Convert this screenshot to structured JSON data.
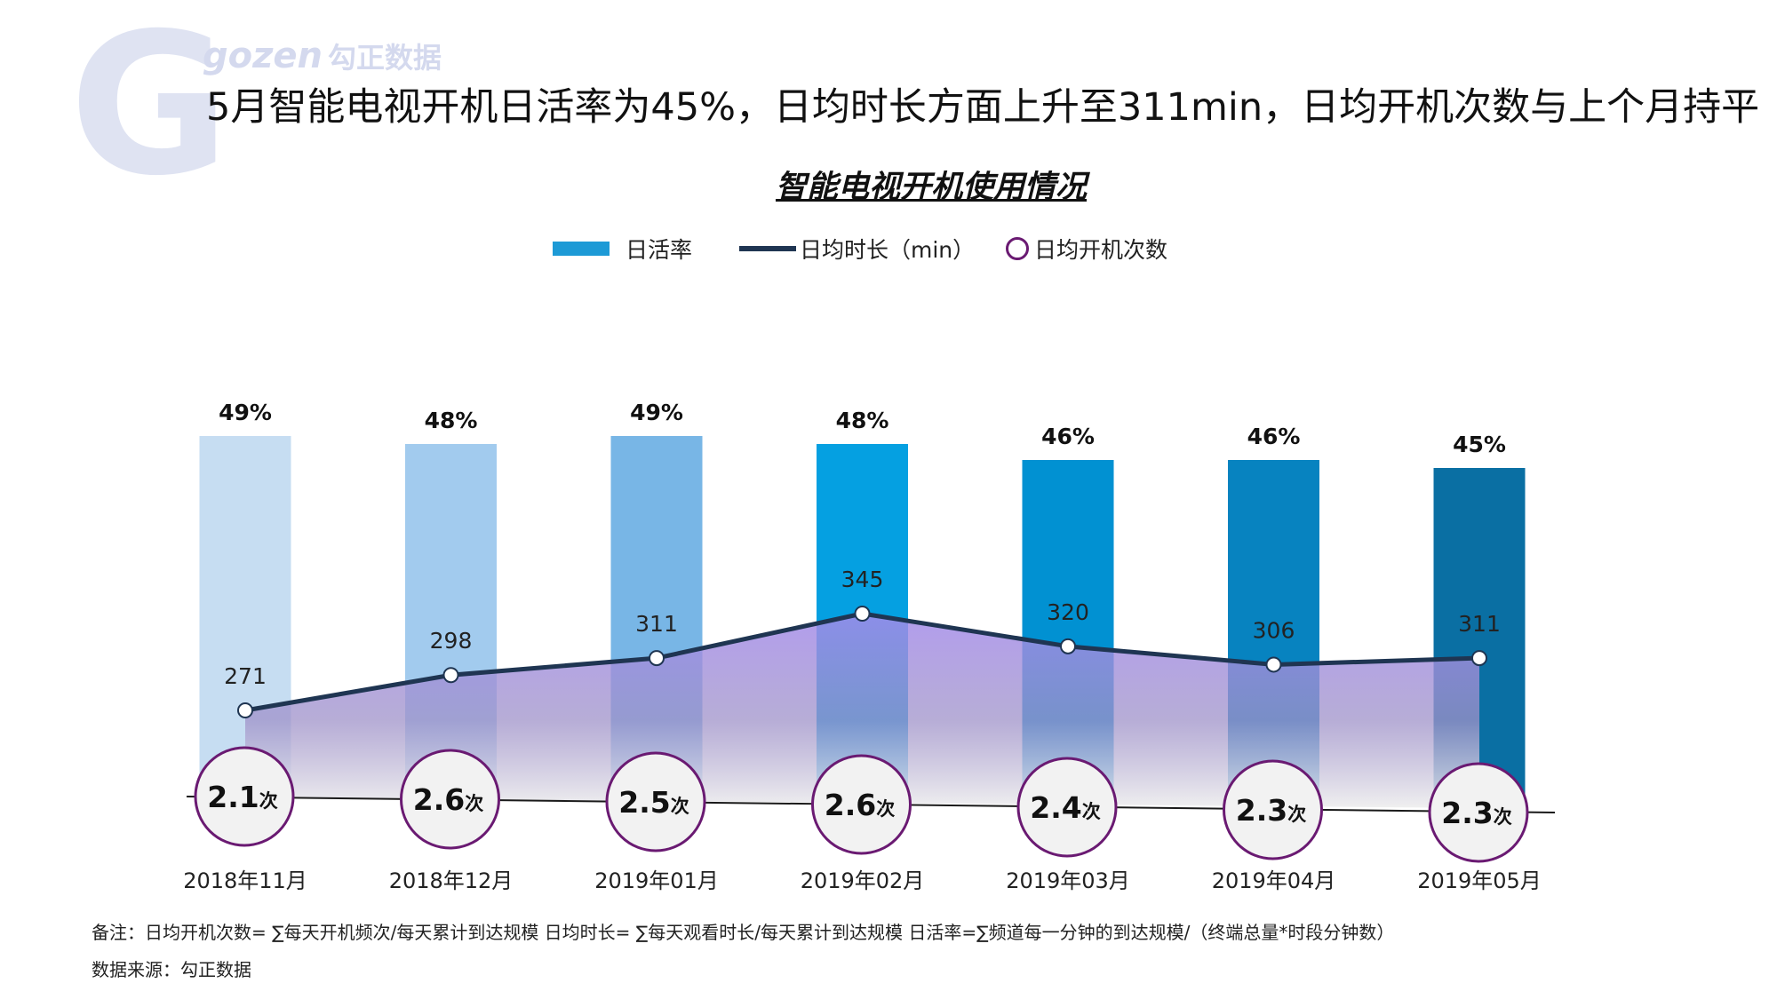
{
  "logo": {
    "brand": "gozen",
    "brand_cn": "勾正数据"
  },
  "headline": "5月智能电视开机日活率为45%，日均时长方面上升至311min，日均开机次数与上个月持平",
  "chart_data": {
    "type": "bar",
    "title": "智能电视开机使用情况",
    "categories": [
      "2018年11月",
      "2018年12月",
      "2019年01月",
      "2019年02月",
      "2019年03月",
      "2019年04月",
      "2019年05月"
    ],
    "legend": [
      "日活率",
      "日均时长（min）",
      "日均开机次数"
    ],
    "series": [
      {
        "name": "日活率",
        "type": "bar",
        "unit": "%",
        "values": [
          49,
          48,
          49,
          48,
          46,
          46,
          45
        ],
        "labels": [
          "49%",
          "48%",
          "49%",
          "48%",
          "46%",
          "46%",
          "45%"
        ],
        "colors": [
          "#c6ddf2",
          "#a2cbee",
          "#78b6e6",
          "#05a0e1",
          "#0191d2",
          "#0783c0",
          "#0a6fa3"
        ]
      },
      {
        "name": "日均时长（min）",
        "type": "area-line",
        "unit": "min",
        "values": [
          271,
          298,
          311,
          345,
          320,
          306,
          311
        ],
        "labels": [
          "271",
          "298",
          "311",
          "345",
          "320",
          "306",
          "311"
        ],
        "color": "#1f3552"
      },
      {
        "name": "日均开机次数",
        "type": "circle",
        "unit": "次",
        "values": [
          2.1,
          2.6,
          2.5,
          2.6,
          2.4,
          2.3,
          2.3
        ],
        "labels": [
          "2.1",
          "2.6",
          "2.5",
          "2.6",
          "2.4",
          "2.3",
          "2.3"
        ],
        "suffix": "次",
        "color": "#6a1a72"
      }
    ]
  },
  "footnote": "备注：日均开机次数= ∑每天开机频次/每天累计到达规模    日均时长= ∑每天观看时长/每天累计到达规模    日活率=∑频道每一分钟的到达规模/（终端总量*时段分钟数）",
  "source": "数据来源：勾正数据"
}
